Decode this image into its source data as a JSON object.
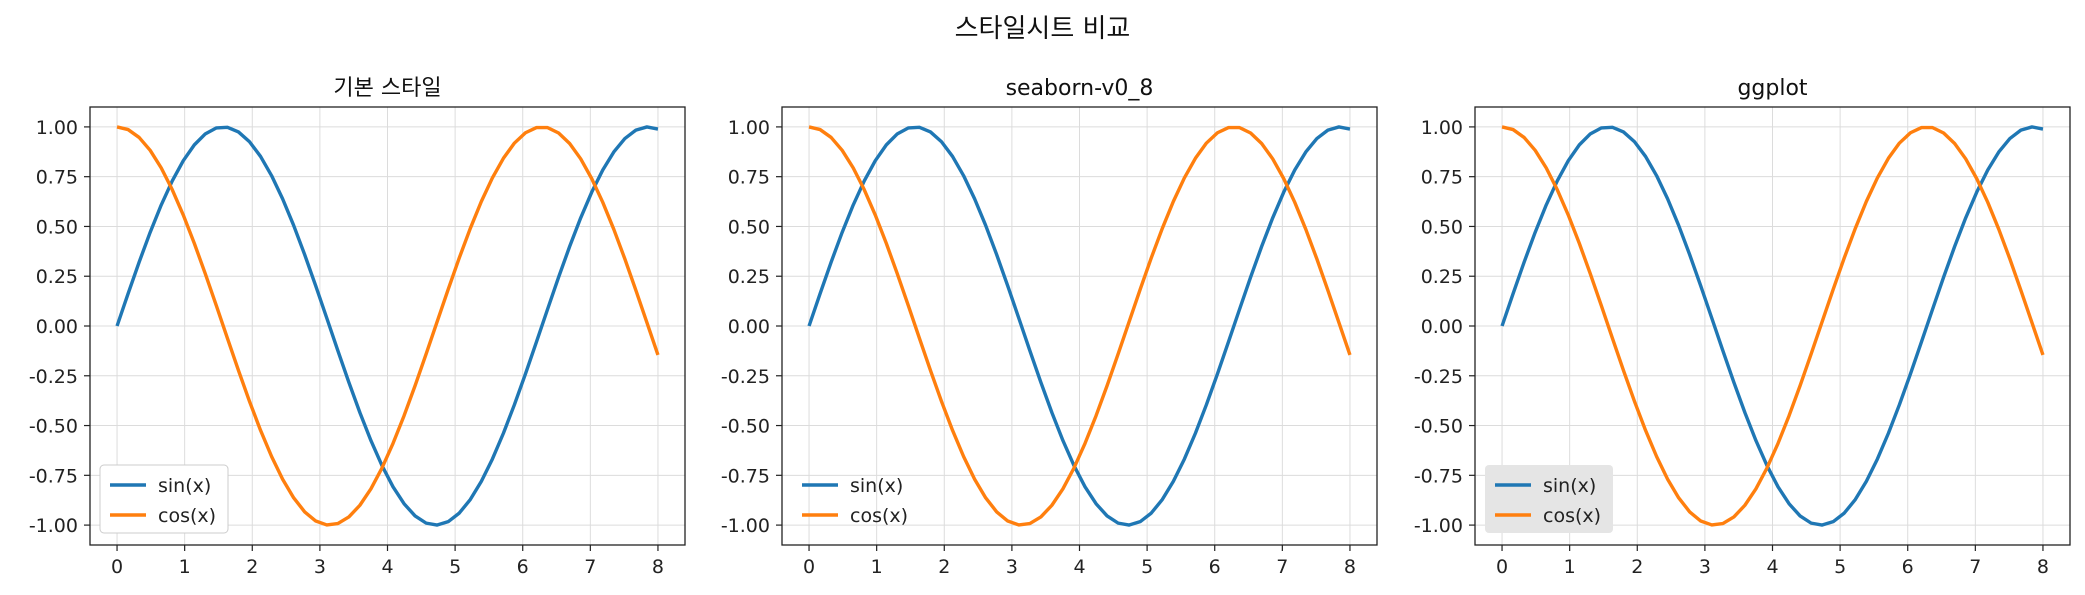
{
  "figure_title": "스타일시트 비교",
  "chart_data": [
    {
      "type": "line",
      "title": "기본 스타일",
      "xlabel": "",
      "ylabel": "",
      "xlim": [
        -0.4,
        8.4
      ],
      "ylim": [
        -1.1,
        1.1
      ],
      "xticks": [
        0,
        1,
        2,
        3,
        4,
        5,
        6,
        7,
        8
      ],
      "xtick_labels": [
        "0",
        "1",
        "2",
        "3",
        "4",
        "5",
        "6",
        "7",
        "8"
      ],
      "yticks": [
        1.0,
        0.75,
        0.5,
        0.25,
        0.0,
        -0.25,
        -0.5,
        -0.75,
        -1.0
      ],
      "ytick_labels": [
        "1.00",
        "0.75",
        "0.50",
        "0.25",
        "0.00",
        "-0.25",
        "-0.50",
        "-0.75",
        "-1.00"
      ],
      "grid": true,
      "legend_position": "lower-left",
      "legend_background": "#ffffff",
      "series": [
        {
          "name": "sin(x)",
          "function": "sin",
          "x_range": [
            0,
            8
          ],
          "samples": 50,
          "color": "#1f77b4"
        },
        {
          "name": "cos(x)",
          "function": "cos",
          "x_range": [
            0,
            8
          ],
          "samples": 50,
          "color": "#ff7f0e"
        }
      ]
    },
    {
      "type": "line",
      "title": "seaborn-v0_8",
      "xlabel": "",
      "ylabel": "",
      "xlim": [
        -0.4,
        8.4
      ],
      "ylim": [
        -1.1,
        1.1
      ],
      "xticks": [
        0,
        1,
        2,
        3,
        4,
        5,
        6,
        7,
        8
      ],
      "xtick_labels": [
        "0",
        "1",
        "2",
        "3",
        "4",
        "5",
        "6",
        "7",
        "8"
      ],
      "yticks": [
        1.0,
        0.75,
        0.5,
        0.25,
        0.0,
        -0.25,
        -0.5,
        -0.75,
        -1.0
      ],
      "ytick_labels": [
        "1.00",
        "0.75",
        "0.50",
        "0.25",
        "0.00",
        "-0.25",
        "-0.50",
        "-0.75",
        "-1.00"
      ],
      "grid": true,
      "legend_position": "lower-left",
      "legend_background": "none",
      "series": [
        {
          "name": "sin(x)",
          "function": "sin",
          "x_range": [
            0,
            8
          ],
          "samples": 50,
          "color": "#1f77b4"
        },
        {
          "name": "cos(x)",
          "function": "cos",
          "x_range": [
            0,
            8
          ],
          "samples": 50,
          "color": "#ff7f0e"
        }
      ]
    },
    {
      "type": "line",
      "title": "ggplot",
      "xlabel": "",
      "ylabel": "",
      "xlim": [
        -0.4,
        8.4
      ],
      "ylim": [
        -1.1,
        1.1
      ],
      "xticks": [
        0,
        1,
        2,
        3,
        4,
        5,
        6,
        7,
        8
      ],
      "xtick_labels": [
        "0",
        "1",
        "2",
        "3",
        "4",
        "5",
        "6",
        "7",
        "8"
      ],
      "yticks": [
        1.0,
        0.75,
        0.5,
        0.25,
        0.0,
        -0.25,
        -0.5,
        -0.75,
        -1.0
      ],
      "ytick_labels": [
        "1.00",
        "0.75",
        "0.50",
        "0.25",
        "0.00",
        "-0.25",
        "-0.50",
        "-0.75",
        "-1.00"
      ],
      "grid": true,
      "legend_position": "lower-left",
      "legend_background": "#e5e5e5",
      "series": [
        {
          "name": "sin(x)",
          "function": "sin",
          "x_range": [
            0,
            8
          ],
          "samples": 50,
          "color": "#1f77b4"
        },
        {
          "name": "cos(x)",
          "function": "cos",
          "x_range": [
            0,
            8
          ],
          "samples": 50,
          "color": "#ff7f0e"
        }
      ]
    }
  ]
}
